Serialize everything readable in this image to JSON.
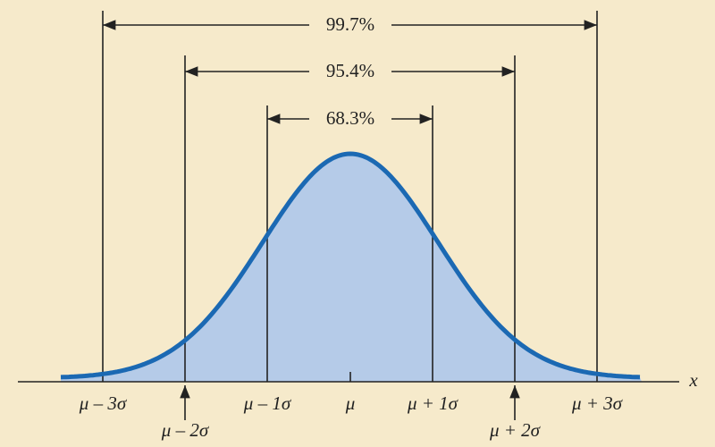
{
  "brackets": [
    {
      "label": "99.7%"
    },
    {
      "label": "95.4%"
    },
    {
      "label": "68.3%"
    }
  ],
  "axis": {
    "variable": "x",
    "labels": [
      "μ – 3σ",
      "μ – 2σ",
      "μ – 1σ",
      "μ",
      "μ + 1σ",
      "μ + 2σ",
      "μ + 3σ"
    ]
  }
}
